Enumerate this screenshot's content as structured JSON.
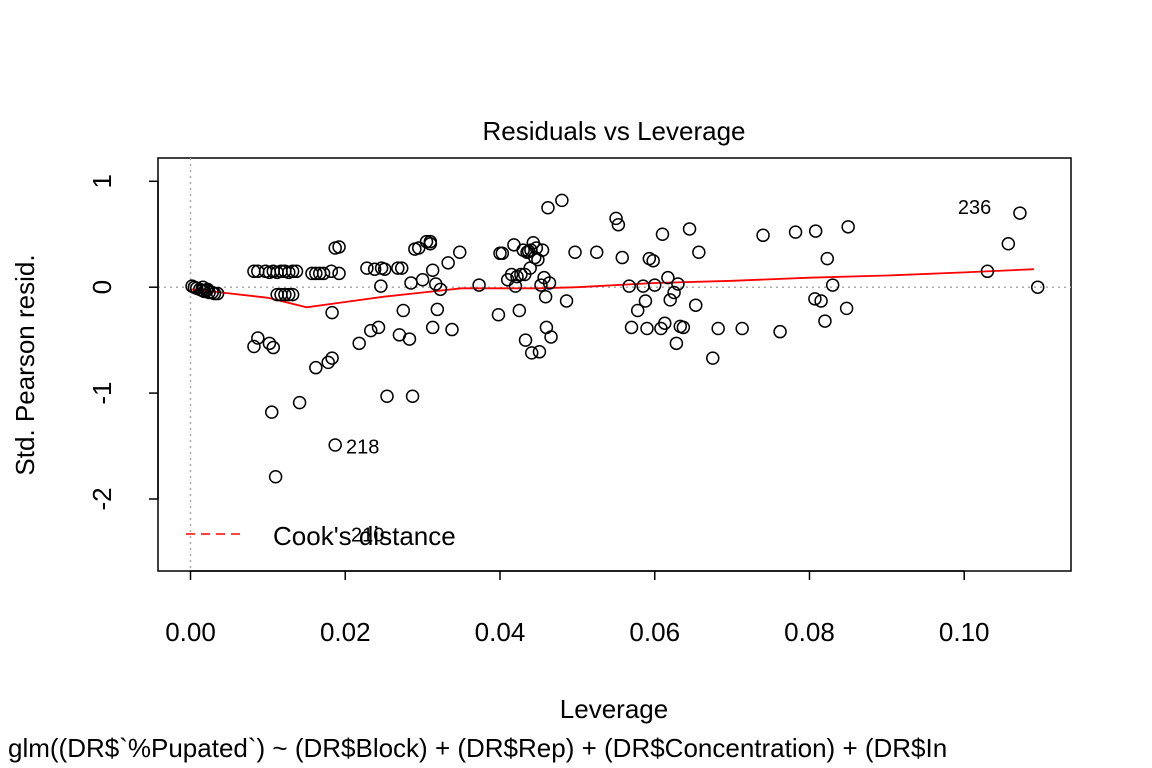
{
  "chart_data": {
    "type": "scatter",
    "title": "Residuals vs Leverage",
    "xlabel": "Leverage",
    "ylabel": "Std. Pearson resid.",
    "subtitle": "glm((DR$`%Pupated`) ~ (DR$Block) + (DR$Rep) + (DR$Concentration) + (DR$In",
    "xlim": [
      -0.0042,
      0.1138
    ],
    "ylim": [
      -2.68,
      1.22
    ],
    "x_ticks": [
      0.0,
      0.02,
      0.04,
      0.06,
      0.08,
      0.1
    ],
    "x_tick_labels": [
      "0.00",
      "0.02",
      "0.04",
      "0.06",
      "0.08",
      "0.10"
    ],
    "y_ticks": [
      -2,
      -1,
      0,
      1
    ],
    "y_tick_labels": [
      "-2",
      "-1",
      "0",
      "1"
    ],
    "grid": false,
    "reference_lines": {
      "vertical_x": 0,
      "horizontal_y": 0,
      "style": "dotted",
      "color": "#aaaaaa"
    },
    "point_color": "#000000",
    "smoother_color": "#ff0000",
    "legend": {
      "position": "bottom-left",
      "entries": [
        "Cook's distance"
      ],
      "line_style": "dashed",
      "color": "#ff0000"
    },
    "annotations": [
      {
        "label": "236",
        "x": 0.1035,
        "y": 0.69,
        "anchor": "end"
      },
      {
        "label": "218",
        "x": 0.0201,
        "y": -1.57,
        "anchor": "start"
      },
      {
        "label": "210",
        "x": 0.0229,
        "y": -2.4,
        "anchor": "middle"
      }
    ],
    "points": [
      [
        0.0002,
        0.01
      ],
      [
        0.0005,
        0.0
      ],
      [
        0.0008,
        -0.01
      ],
      [
        0.0012,
        -0.02
      ],
      [
        0.0015,
        -0.03
      ],
      [
        0.0018,
        -0.04
      ],
      [
        0.0021,
        -0.03
      ],
      [
        0.0024,
        -0.05
      ],
      [
        0.0028,
        -0.05
      ],
      [
        0.0031,
        -0.06
      ],
      [
        0.0035,
        -0.06
      ],
      [
        0.0022,
        -0.02
      ],
      [
        0.0016,
        0.0
      ],
      [
        0.0082,
        0.15
      ],
      [
        0.0087,
        0.15
      ],
      [
        0.0097,
        0.15
      ],
      [
        0.0102,
        0.14
      ],
      [
        0.0107,
        0.15
      ],
      [
        0.0112,
        0.14
      ],
      [
        0.0117,
        0.15
      ],
      [
        0.0122,
        0.15
      ],
      [
        0.0127,
        0.14
      ],
      [
        0.0132,
        0.15
      ],
      [
        0.0137,
        0.15
      ],
      [
        0.0157,
        0.13
      ],
      [
        0.0162,
        0.13
      ],
      [
        0.0167,
        0.13
      ],
      [
        0.0172,
        0.13
      ],
      [
        0.0182,
        0.15
      ],
      [
        0.0192,
        0.13
      ],
      [
        0.0112,
        -0.07
      ],
      [
        0.0117,
        -0.07
      ],
      [
        0.0122,
        -0.07
      ],
      [
        0.0127,
        -0.07
      ],
      [
        0.0132,
        -0.07
      ],
      [
        0.0087,
        -0.48
      ],
      [
        0.0082,
        -0.56
      ],
      [
        0.0102,
        -0.53
      ],
      [
        0.0107,
        -0.57
      ],
      [
        0.0105,
        -1.18
      ],
      [
        0.011,
        -1.79
      ],
      [
        0.0141,
        -1.09
      ],
      [
        0.0162,
        -0.76
      ],
      [
        0.0178,
        -0.71
      ],
      [
        0.0183,
        -0.67
      ],
      [
        0.0183,
        -0.24
      ],
      [
        0.0187,
        0.37
      ],
      [
        0.0192,
        0.38
      ],
      [
        0.0187,
        -1.49
      ],
      [
        0.0218,
        -0.53
      ],
      [
        0.0228,
        0.18
      ],
      [
        0.0233,
        -0.41
      ],
      [
        0.0238,
        0.17
      ],
      [
        0.0243,
        -0.38
      ],
      [
        0.0246,
        0.01
      ],
      [
        0.0247,
        0.18
      ],
      [
        0.0251,
        0.17
      ],
      [
        0.0254,
        -1.03
      ],
      [
        0.0268,
        0.18
      ],
      [
        0.0273,
        0.18
      ],
      [
        0.027,
        -0.45
      ],
      [
        0.0275,
        -0.22
      ],
      [
        0.0283,
        -0.49
      ],
      [
        0.0285,
        0.04
      ],
      [
        0.029,
        0.36
      ],
      [
        0.0295,
        0.37
      ],
      [
        0.0287,
        -1.03
      ],
      [
        0.03,
        0.07
      ],
      [
        0.0305,
        0.43
      ],
      [
        0.031,
        0.43
      ],
      [
        0.031,
        0.41
      ],
      [
        0.0313,
        0.16
      ],
      [
        0.0313,
        -0.38
      ],
      [
        0.0317,
        0.03
      ],
      [
        0.0319,
        -0.21
      ],
      [
        0.0323,
        -0.02
      ],
      [
        0.0333,
        0.23
      ],
      [
        0.0338,
        -0.4
      ],
      [
        0.0348,
        0.33
      ],
      [
        0.0373,
        0.02
      ],
      [
        0.0398,
        -0.26
      ],
      [
        0.04,
        0.32
      ],
      [
        0.0403,
        0.32
      ],
      [
        0.041,
        0.07
      ],
      [
        0.0415,
        0.12
      ],
      [
        0.0418,
        0.4
      ],
      [
        0.042,
        0.01
      ],
      [
        0.0422,
        0.1
      ],
      [
        0.0425,
        -0.22
      ],
      [
        0.0427,
        0.12
      ],
      [
        0.043,
        0.35
      ],
      [
        0.0432,
        0.12
      ],
      [
        0.0433,
        -0.5
      ],
      [
        0.0435,
        0.33
      ],
      [
        0.0437,
        0.34
      ],
      [
        0.0439,
        0.18
      ],
      [
        0.044,
        0.35
      ],
      [
        0.0441,
        -0.62
      ],
      [
        0.0443,
        0.42
      ],
      [
        0.0445,
        0.28
      ],
      [
        0.0447,
        0.37
      ],
      [
        0.0449,
        0.26
      ],
      [
        0.0451,
        -0.61
      ],
      [
        0.0453,
        0.02
      ],
      [
        0.0455,
        0.35
      ],
      [
        0.0457,
        0.09
      ],
      [
        0.0459,
        -0.09
      ],
      [
        0.046,
        -0.38
      ],
      [
        0.0462,
        0.75
      ],
      [
        0.0464,
        0.04
      ],
      [
        0.0466,
        -0.47
      ],
      [
        0.048,
        0.82
      ],
      [
        0.0486,
        -0.13
      ],
      [
        0.0497,
        0.33
      ],
      [
        0.0525,
        0.33
      ],
      [
        0.055,
        0.65
      ],
      [
        0.0553,
        0.59
      ],
      [
        0.0558,
        0.28
      ],
      [
        0.0567,
        0.01
      ],
      [
        0.057,
        -0.38
      ],
      [
        0.0578,
        -0.22
      ],
      [
        0.0585,
        0.01
      ],
      [
        0.0588,
        -0.13
      ],
      [
        0.059,
        -0.39
      ],
      [
        0.0593,
        0.27
      ],
      [
        0.0598,
        0.25
      ],
      [
        0.06,
        0.02
      ],
      [
        0.0608,
        -0.39
      ],
      [
        0.061,
        0.5
      ],
      [
        0.0613,
        -0.34
      ],
      [
        0.0617,
        0.09
      ],
      [
        0.062,
        -0.12
      ],
      [
        0.0625,
        -0.05
      ],
      [
        0.0628,
        -0.53
      ],
      [
        0.063,
        0.03
      ],
      [
        0.0633,
        -0.37
      ],
      [
        0.0637,
        -0.38
      ],
      [
        0.0645,
        0.55
      ],
      [
        0.0653,
        -0.17
      ],
      [
        0.0657,
        0.33
      ],
      [
        0.0675,
        -0.67
      ],
      [
        0.0682,
        -0.39
      ],
      [
        0.0713,
        -0.39
      ],
      [
        0.074,
        0.49
      ],
      [
        0.0762,
        -0.42
      ],
      [
        0.0782,
        0.52
      ],
      [
        0.0808,
        0.53
      ],
      [
        0.0807,
        -0.11
      ],
      [
        0.0815,
        -0.13
      ],
      [
        0.082,
        -0.32
      ],
      [
        0.0823,
        0.27
      ],
      [
        0.083,
        0.02
      ],
      [
        0.0848,
        -0.2
      ],
      [
        0.085,
        0.57
      ],
      [
        0.103,
        0.15
      ],
      [
        0.1057,
        0.41
      ],
      [
        0.1072,
        0.7
      ],
      [
        0.1095,
        0.0
      ]
    ],
    "smoother": [
      [
        0.0,
        -0.02
      ],
      [
        0.004,
        -0.05
      ],
      [
        0.01,
        -0.1
      ],
      [
        0.015,
        -0.19
      ],
      [
        0.02,
        -0.14
      ],
      [
        0.025,
        -0.09
      ],
      [
        0.03,
        -0.05
      ],
      [
        0.035,
        -0.01
      ],
      [
        0.04,
        -0.01
      ],
      [
        0.045,
        -0.01
      ],
      [
        0.05,
        0.0
      ],
      [
        0.06,
        0.04
      ],
      [
        0.07,
        0.06
      ],
      [
        0.08,
        0.09
      ],
      [
        0.09,
        0.11
      ],
      [
        0.1,
        0.14
      ],
      [
        0.109,
        0.17
      ]
    ]
  }
}
